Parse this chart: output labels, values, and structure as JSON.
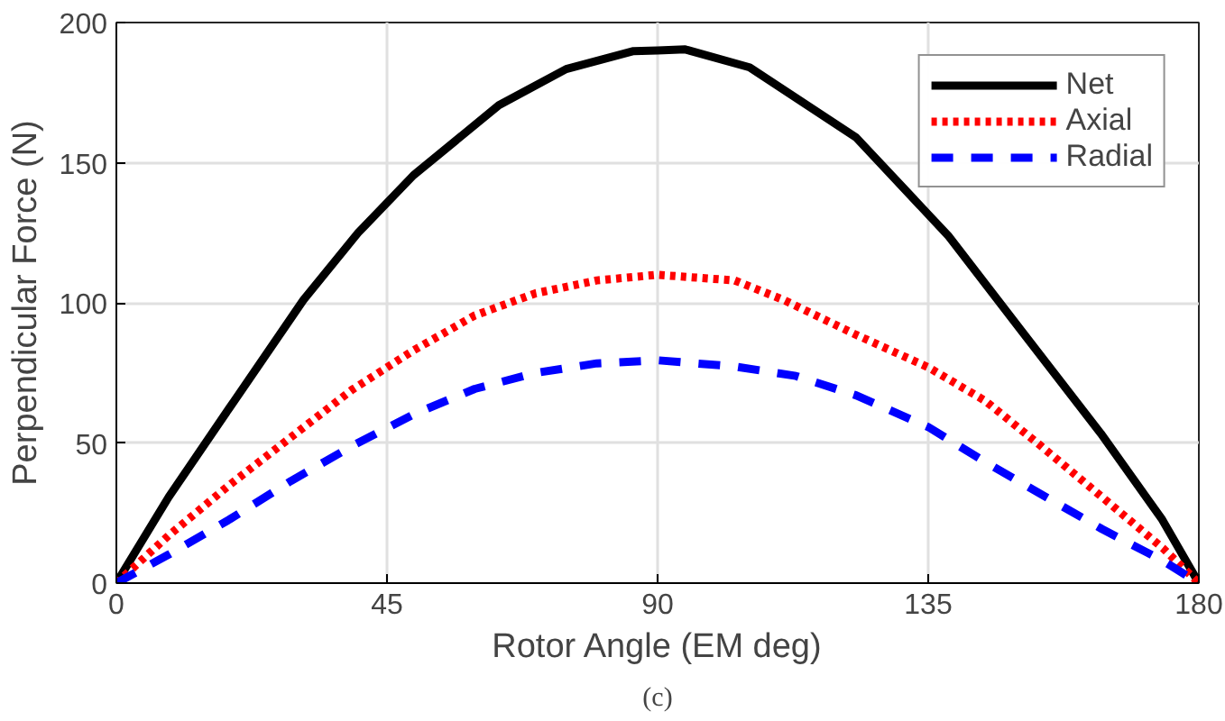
{
  "chart_data": {
    "type": "line",
    "xlabel": "Rotor Angle (EM deg)",
    "ylabel": "Perpendicular Force (N)",
    "annotations": [
      "(c)"
    ],
    "xlim": [
      0,
      180
    ],
    "ylim": [
      0,
      200
    ],
    "xticks": [
      0,
      45,
      90,
      135,
      180
    ],
    "yticks": [
      0,
      50,
      100,
      150,
      200
    ],
    "grid": true,
    "legend": "top right",
    "marker": "none",
    "series": [
      {
        "name": "Net",
        "color": "#000000",
        "line_style": "solid",
        "x": [
          0,
          8.7,
          18.8,
          31.1,
          40.2,
          49.4,
          63.6,
          74.8,
          86,
          90,
          94.6,
          105.3,
          123,
          138.3,
          150.5,
          163.7,
          173.9,
          180
        ],
        "values": [
          0,
          30.7,
          62.5,
          101,
          125,
          145.5,
          170.5,
          183.4,
          189.8,
          190,
          190.4,
          184,
          159,
          124,
          90,
          53.4,
          22.7,
          0
        ]
      },
      {
        "name": "Axial",
        "color": "#ff0000",
        "line_style": "dotted",
        "x": [
          0,
          8.7,
          18.8,
          29,
          39.2,
          49.4,
          59.6,
          69.7,
          79.9,
          90,
          102.8,
          111,
          123,
          135,
          144.5,
          153.7,
          163.9,
          174,
          180
        ],
        "values": [
          0,
          17,
          35,
          52,
          69,
          83,
          95.5,
          103.4,
          108,
          110,
          108,
          101,
          88.6,
          77,
          65,
          49,
          30.7,
          12.5,
          0
        ]
      },
      {
        "name": "Radial",
        "color": "#0000ff",
        "line_style": "dashed",
        "x": [
          0,
          8.7,
          18.8,
          29,
          39.2,
          49.4,
          59.6,
          69.7,
          79.9,
          90,
          102.8,
          113,
          123,
          135,
          144.5,
          153.7,
          163.9,
          174,
          180
        ],
        "values": [
          0,
          10.2,
          22.7,
          36.4,
          48.9,
          60.2,
          69.3,
          75,
          78.4,
          79.5,
          77.3,
          73.9,
          67,
          55.7,
          43.2,
          31.8,
          19.3,
          8,
          0
        ]
      }
    ]
  }
}
